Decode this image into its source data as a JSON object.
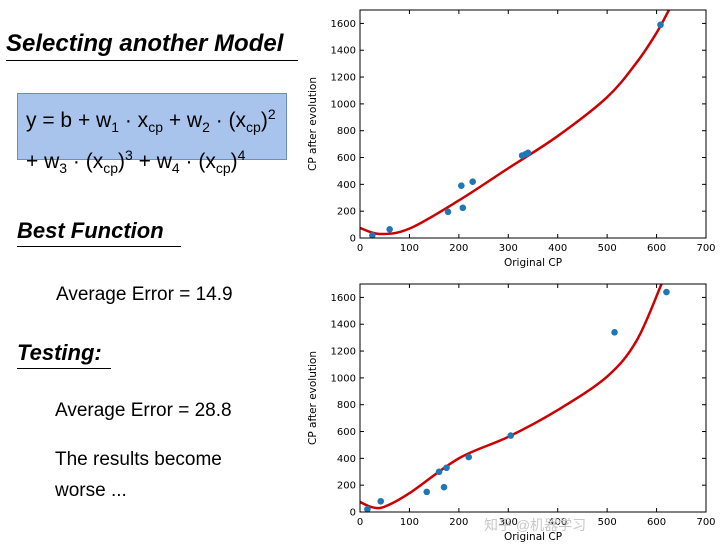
{
  "slide": {
    "title": "Selecting another Model",
    "formula": {
      "part1": "y = b + w",
      "s1": "1",
      "part2": " · x",
      "s2": "cp",
      "part3": " + w",
      "s3": "2",
      "part4": " · (x",
      "s4": "cp",
      "part5": ")",
      "sup1": "2",
      "part6": "+ w",
      "s5": "3",
      "part7": " · (x",
      "s6": "cp",
      "part8": ")",
      "sup2": "3",
      "part9": " + w",
      "s7": "4",
      "part10": " · (x",
      "s8": "cp",
      "part11": ")",
      "sup3": "4"
    },
    "best_function_heading": "Best Function",
    "train_error": "Average Error = 14.9",
    "testing_heading": "Testing:",
    "test_error": "Average Error = 28.8",
    "conclusion_line1": "The results become",
    "conclusion_line2": "worse ..."
  },
  "watermark": "知乎 @机器学习",
  "colors": {
    "point": "#1f77b4",
    "curve": "#cc0000",
    "formula_bg": "#a9c4ec"
  },
  "chart_data": [
    {
      "type": "scatter",
      "title": "",
      "xlabel": "Original CP",
      "ylabel": "CP after evolution",
      "xlim": [
        0,
        700
      ],
      "ylim": [
        0,
        1700
      ],
      "xticks": [
        0,
        100,
        200,
        300,
        400,
        500,
        600,
        700
      ],
      "yticks": [
        0,
        200,
        400,
        600,
        800,
        1000,
        1200,
        1400,
        1600
      ],
      "points": {
        "x": [
          25,
          60,
          178,
          205,
          208,
          228,
          328,
          335,
          340,
          608
        ],
        "y": [
          20,
          65,
          195,
          390,
          225,
          420,
          615,
          625,
          635,
          1590
        ]
      },
      "curve": {
        "x": [
          0,
          40,
          100,
          200,
          300,
          400,
          500,
          560,
          600,
          625
        ],
        "y": [
          75,
          30,
          70,
          280,
          520,
          760,
          1050,
          1310,
          1530,
          1700
        ]
      }
    },
    {
      "type": "scatter",
      "title": "",
      "xlabel": "Original CP",
      "ylabel": "CP after evolution",
      "xlim": [
        0,
        700
      ],
      "ylim": [
        0,
        1700
      ],
      "xticks": [
        0,
        100,
        200,
        300,
        400,
        500,
        600,
        700
      ],
      "yticks": [
        0,
        200,
        400,
        600,
        800,
        1000,
        1200,
        1400,
        1600
      ],
      "points": {
        "x": [
          15,
          42,
          135,
          160,
          170,
          175,
          220,
          305,
          515,
          620
        ],
        "y": [
          20,
          80,
          150,
          300,
          185,
          330,
          410,
          570,
          1340,
          1640
        ]
      },
      "curve": {
        "x": [
          0,
          25,
          50,
          100,
          200,
          300,
          400,
          500,
          560,
          610
        ],
        "y": [
          75,
          35,
          40,
          140,
          400,
          560,
          760,
          1010,
          1280,
          1700
        ]
      }
    }
  ]
}
